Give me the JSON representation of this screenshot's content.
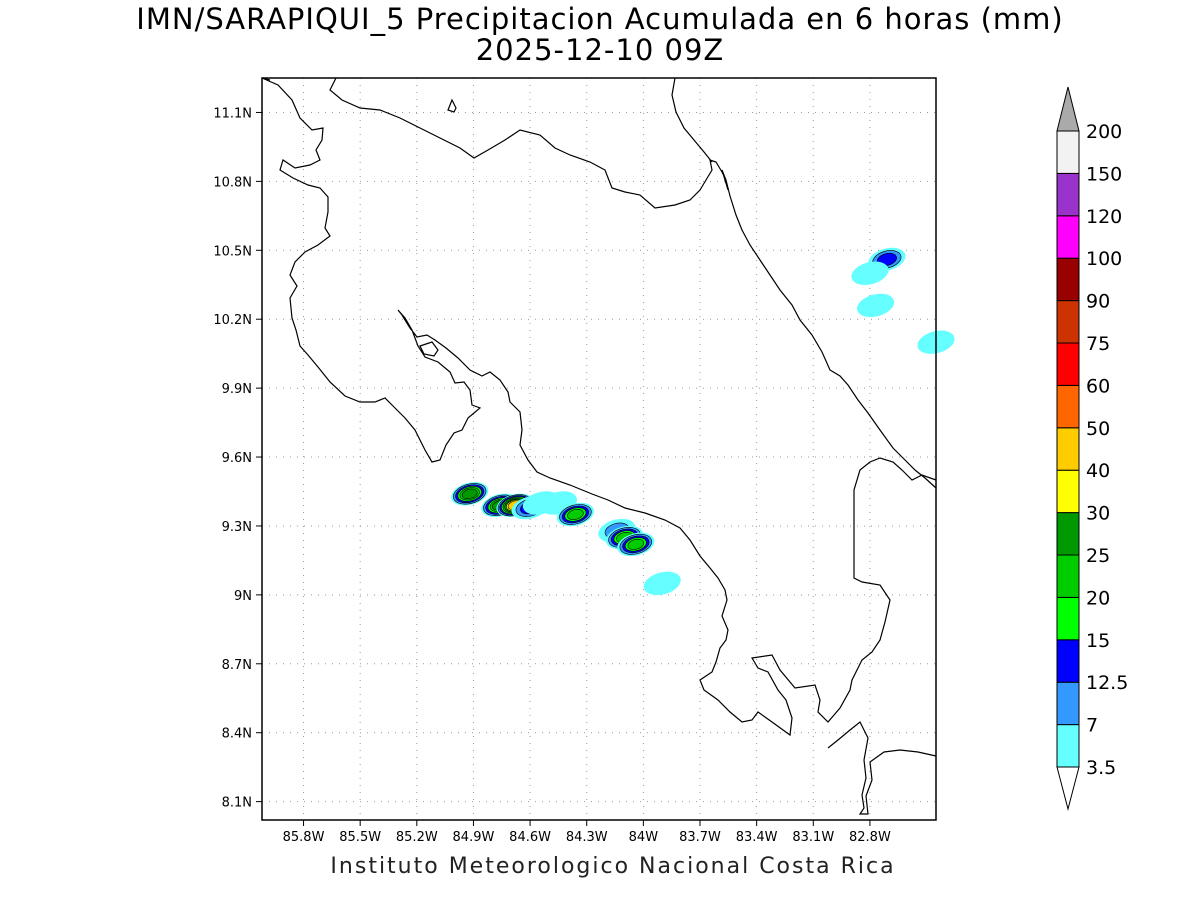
{
  "map": {
    "title": "IMN/SARAPIQUI_5 Precipitacion Acumulada en 6 horas (mm)",
    "subtitle": "2025-12-10 09Z",
    "footer": "Instituto Meteorologico Nacional Costa Rica",
    "lon_range": [
      -86.02,
      -82.45
    ],
    "lat_range": [
      8.02,
      11.25
    ],
    "lon_ticks": [
      {
        "value": -85.8,
        "label": "85.8W"
      },
      {
        "value": -85.5,
        "label": "85.5W"
      },
      {
        "value": -85.2,
        "label": "85.2W"
      },
      {
        "value": -84.9,
        "label": "84.9W"
      },
      {
        "value": -84.6,
        "label": "84.6W"
      },
      {
        "value": -84.3,
        "label": "84.3W"
      },
      {
        "value": -84.0,
        "label": "84W"
      },
      {
        "value": -83.7,
        "label": "83.7W"
      },
      {
        "value": -83.4,
        "label": "83.4W"
      },
      {
        "value": -83.1,
        "label": "83.1W"
      },
      {
        "value": -82.8,
        "label": "82.8W"
      }
    ],
    "lat_ticks": [
      {
        "value": 11.1,
        "label": "11.1N"
      },
      {
        "value": 10.8,
        "label": "10.8N"
      },
      {
        "value": 10.5,
        "label": "10.5N"
      },
      {
        "value": 10.2,
        "label": "10.2N"
      },
      {
        "value": 9.9,
        "label": "9.9N"
      },
      {
        "value": 9.6,
        "label": "9.6N"
      },
      {
        "value": 9.3,
        "label": "9.3N"
      },
      {
        "value": 9.0,
        "label": "9N"
      },
      {
        "value": 8.7,
        "label": "8.7N"
      },
      {
        "value": 8.4,
        "label": "8.4N"
      },
      {
        "value": 8.1,
        "label": "8.1N"
      }
    ],
    "grid": true,
    "precip_cells": [
      {
        "lon": -84.92,
        "lat": 9.44,
        "mm": 25
      },
      {
        "lon": -84.76,
        "lat": 9.39,
        "mm": 25
      },
      {
        "lon": -84.68,
        "lat": 9.39,
        "mm": 40
      },
      {
        "lon": -84.6,
        "lat": 9.38,
        "mm": 12.5
      },
      {
        "lon": -84.54,
        "lat": 9.4,
        "mm": 3.5
      },
      {
        "lon": -84.45,
        "lat": 9.4,
        "mm": 3.5
      },
      {
        "lon": -84.36,
        "lat": 9.35,
        "mm": 20
      },
      {
        "lon": -84.14,
        "lat": 9.28,
        "mm": 7
      },
      {
        "lon": -84.1,
        "lat": 9.25,
        "mm": 20
      },
      {
        "lon": -84.04,
        "lat": 9.22,
        "mm": 20
      },
      {
        "lon": -83.9,
        "lat": 9.05,
        "mm": 3.5
      },
      {
        "lon": -82.71,
        "lat": 10.46,
        "mm": 12.5
      },
      {
        "lon": -82.8,
        "lat": 10.4,
        "mm": 3.5
      },
      {
        "lon": -82.77,
        "lat": 10.26,
        "mm": 3.5
      },
      {
        "lon": -82.45,
        "lat": 10.1,
        "mm": 3.5
      }
    ]
  },
  "legend": {
    "colors": {
      "3.5": "#66ffff",
      "7": "#3399ff",
      "12.5": "#0000ff",
      "15": "#00ff00",
      "20": "#00cc00",
      "25": "#009900",
      "30": "#ffff00",
      "40": "#ffcc00",
      "50": "#ff6600",
      "60": "#ff0000",
      "75": "#cc3300",
      "90": "#990000",
      "100": "#ff00ff",
      "120": "#9933cc",
      "150": "#f2f2f2",
      "200": "#aaaaaa"
    },
    "bins": [
      {
        "color": "#66ffff"
      },
      {
        "color": "#3399ff"
      },
      {
        "color": "#0000ff"
      },
      {
        "color": "#00ff00"
      },
      {
        "color": "#00cc00"
      },
      {
        "color": "#009900"
      },
      {
        "color": "#ffff00"
      },
      {
        "color": "#ffcc00"
      },
      {
        "color": "#ff6600"
      },
      {
        "color": "#ff0000"
      },
      {
        "color": "#cc3300"
      },
      {
        "color": "#990000"
      },
      {
        "color": "#ff00ff"
      },
      {
        "color": "#9933cc"
      },
      {
        "color": "#f2f2f2"
      }
    ],
    "over_color": "#aaaaaa",
    "under_color": "#ffffff",
    "labels": [
      "3.5",
      "7",
      "12.5",
      "15",
      "20",
      "25",
      "30",
      "40",
      "50",
      "60",
      "75",
      "90",
      "100",
      "120",
      "150",
      "200"
    ]
  }
}
